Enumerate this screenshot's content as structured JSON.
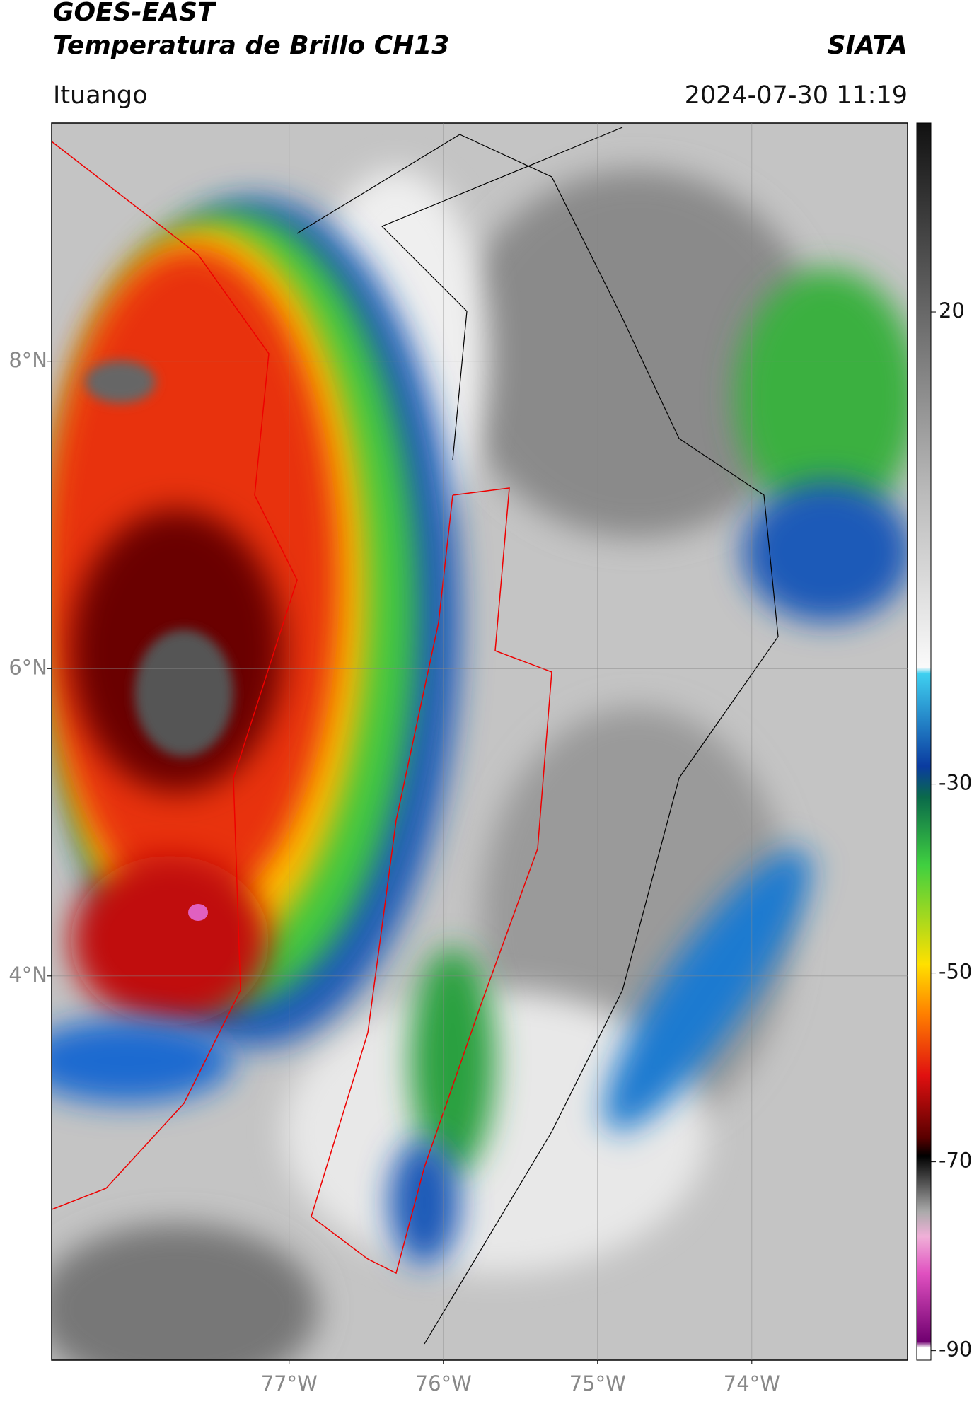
{
  "header": {
    "title": "GOES-EAST",
    "subtitle": "Temperatura de Brillo CH13",
    "brand": "SIATA",
    "location": "Ituango",
    "datetime": "2024-07-30 11:19"
  },
  "map": {
    "xlim": [
      -78.54,
      -72.99
    ],
    "ylim": [
      1.5,
      9.55
    ],
    "xticks": [
      {
        "value": -77,
        "label": "77°W"
      },
      {
        "value": -76,
        "label": "76°W"
      },
      {
        "value": -75,
        "label": "75°W"
      },
      {
        "value": -74,
        "label": "74°W"
      }
    ],
    "yticks": [
      {
        "value": 8,
        "label": "8°N"
      },
      {
        "value": 6,
        "label": "6°N"
      },
      {
        "value": 4,
        "label": "4°N"
      }
    ],
    "grid": true
  },
  "colorbar": {
    "clim": [
      -91,
      40
    ],
    "ticks": [
      20,
      -30,
      -50,
      -70,
      -90
    ]
  }
}
